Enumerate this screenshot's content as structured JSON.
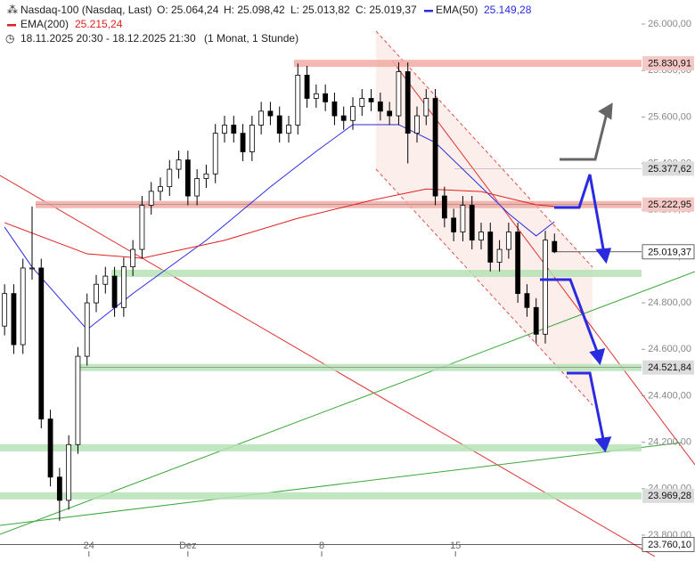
{
  "chart_data": {
    "type": "candlestick",
    "title": "Nasdaq-100 (Nasdaq, Last)",
    "ohlc_labels": [
      "O: 25.064,24",
      "H: 25.098,42",
      "L: 25.013,82",
      "C: 25.019,37"
    ],
    "period": "18.11.2025 20:30 - 18.12.2025 21:30",
    "interval": "(1 Monat, 1 Stunde)",
    "ohlc": [
      [
        24700,
        24880,
        24660,
        24840
      ],
      [
        24840,
        24880,
        24580,
        24620
      ],
      [
        24620,
        24990,
        24580,
        24950
      ],
      [
        24950,
        25215,
        24900,
        24950
      ],
      [
        24950,
        24990,
        24260,
        24300
      ],
      [
        24300,
        24340,
        24010,
        24050
      ],
      [
        24050,
        24090,
        23862,
        23950
      ],
      [
        23950,
        24230,
        23910,
        24190
      ],
      [
        24190,
        24610,
        24150,
        24570
      ],
      [
        24570,
        24840,
        24530,
        24800
      ],
      [
        24800,
        24920,
        24760,
        24880
      ],
      [
        24880,
        24955,
        24840,
        24915
      ],
      [
        24915,
        24955,
        24740,
        24780
      ],
      [
        24780,
        24995,
        24740,
        24955
      ],
      [
        24955,
        25070,
        24915,
        25030
      ],
      [
        25030,
        25260,
        24990,
        25220
      ],
      [
        25220,
        25320,
        25180,
        25280
      ],
      [
        25280,
        25340,
        25240,
        25300
      ],
      [
        25300,
        25415,
        25260,
        25375
      ],
      [
        25375,
        25455,
        25335,
        25415
      ],
      [
        25415,
        25455,
        25220,
        25260
      ],
      [
        25260,
        25375,
        25220,
        25335
      ],
      [
        25335,
        25395,
        25295,
        25355
      ],
      [
        25355,
        25570,
        25315,
        25530
      ],
      [
        25530,
        25605,
        25490,
        25565
      ],
      [
        25565,
        25605,
        25490,
        25530
      ],
      [
        25530,
        25570,
        25410,
        25450
      ],
      [
        25450,
        25605,
        25410,
        25565
      ],
      [
        25565,
        25665,
        25525,
        25625
      ],
      [
        25625,
        25665,
        25565,
        25605
      ],
      [
        25605,
        25645,
        25490,
        25530
      ],
      [
        25530,
        25605,
        25490,
        25565
      ],
      [
        25565,
        25830,
        25525,
        25780
      ],
      [
        25780,
        25820,
        25640,
        25680
      ],
      [
        25680,
        25740,
        25640,
        25700
      ],
      [
        25700,
        25740,
        25625,
        25665
      ],
      [
        25665,
        25705,
        25565,
        25605
      ],
      [
        25605,
        25645,
        25545,
        25585
      ],
      [
        25585,
        25685,
        25545,
        25645
      ],
      [
        25645,
        25720,
        25605,
        25680
      ],
      [
        25680,
        25720,
        25625,
        25665
      ],
      [
        25665,
        25705,
        25585,
        25625
      ],
      [
        25625,
        25665,
        25565,
        25605
      ],
      [
        25605,
        25835,
        25565,
        25795
      ],
      [
        25795,
        25835,
        25400,
        25530
      ],
      [
        25530,
        25645,
        25490,
        25605
      ],
      [
        25605,
        25720,
        25565,
        25680
      ],
      [
        25680,
        25720,
        25220,
        25260
      ],
      [
        25260,
        25300,
        25125,
        25165
      ],
      [
        25165,
        25205,
        25065,
        25105
      ],
      [
        25105,
        25260,
        25065,
        25220
      ],
      [
        25220,
        25260,
        25030,
        25070
      ],
      [
        25070,
        25145,
        25030,
        25105
      ],
      [
        25105,
        25145,
        24935,
        24975
      ],
      [
        24975,
        25070,
        24935,
        25030
      ],
      [
        25030,
        25145,
        24990,
        25105
      ],
      [
        25105,
        25145,
        24800,
        24840
      ],
      [
        24840,
        24880,
        24740,
        24780
      ],
      [
        24780,
        24820,
        24625,
        24665
      ],
      [
        24665,
        25110,
        24625,
        25070
      ],
      [
        25064.24,
        25098.42,
        25013.82,
        25019.37
      ]
    ],
    "series": [
      {
        "name": "EMA(50)",
        "value_label": "25.149,28",
        "color": "#2a2ae0",
        "x": [
          0,
          3,
          9,
          14,
          22,
          29,
          34,
          38,
          43,
          47,
          51,
          55,
          58,
          60
        ],
        "values": [
          25126,
          24954,
          24685,
          24840,
          25069,
          25299,
          25452,
          25567,
          25567,
          25490,
          25337,
          25184,
          25088,
          25149.28
        ]
      },
      {
        "name": "EMA(200)",
        "value_label": "25.215,24",
        "color": "#e02020",
        "x": [
          0,
          9,
          15,
          24,
          32,
          40,
          46,
          52,
          58,
          60
        ],
        "values": [
          25145,
          25011,
          24992,
          25069,
          25164,
          25241,
          25290,
          25279,
          25222,
          25215.24
        ]
      }
    ],
    "levels": [
      {
        "value": 25830.91,
        "label": "25.830,91",
        "color": "#f2aaa4"
      },
      {
        "value": 25377.62,
        "label": "25.377,62",
        "color": "#999999"
      },
      {
        "value": 25222.95,
        "label": "25.222,95",
        "color": "#f2aaa4"
      },
      {
        "value": 25019.37,
        "label": "25.019,37",
        "color": "#000000"
      },
      {
        "value": 24927,
        "color": "#b5e3b5"
      },
      {
        "value": 24521.84,
        "label": "24.521,84",
        "color": "#b5e3b5"
      },
      {
        "value": 24176,
        "color": "#b5e3b5"
      },
      {
        "value": 23969.28,
        "label": "23.969,28",
        "color": "#b5e3b5"
      },
      {
        "value": 23760.1,
        "label": "23.760,10",
        "color": "#000000"
      }
    ],
    "xlim": [
      -0.5,
      69.5
    ],
    "xticks": [
      {
        "value": 9.2,
        "label": "24"
      },
      {
        "value": 20,
        "label": "Dez"
      },
      {
        "value": 34.6,
        "label": "8"
      },
      {
        "value": 49.2,
        "label": "15"
      }
    ],
    "ylim": [
      23800,
      26000
    ],
    "yticks": [
      {
        "value": 23800,
        "label": "23.800,00"
      },
      {
        "value": 24000,
        "label": "24.000,00"
      },
      {
        "value": 24200,
        "label": "24.200,00"
      },
      {
        "value": 24400,
        "label": "24.400,00"
      },
      {
        "value": 24600,
        "label": "24.600,00"
      },
      {
        "value": 24800,
        "label": "24.800,00"
      },
      {
        "value": 25000,
        "label": "25.000,00"
      },
      {
        "value": 25200,
        "label": "25.200,00"
      },
      {
        "value": 25400,
        "label": "25.400,00"
      },
      {
        "value": 25600,
        "label": "25.600,00"
      },
      {
        "value": 25800,
        "label": "25.800,00"
      },
      {
        "value": 26000,
        "label": "26.000,00"
      }
    ],
    "up_color": "#ffffff",
    "down_color": "#000000"
  }
}
